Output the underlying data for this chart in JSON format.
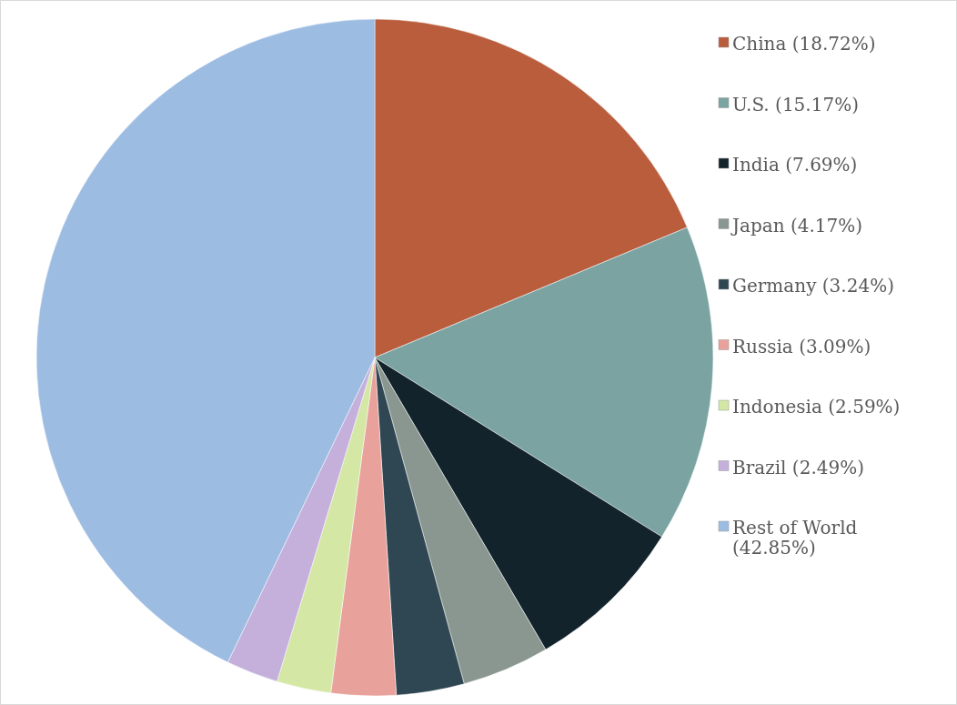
{
  "chart_data": {
    "type": "pie",
    "categories": [
      "China (18.72%)",
      "U.S. (15.17%)",
      "India (7.69%)",
      "Japan (4.17%)",
      "Germany (3.24%)",
      "Russia (3.09%)",
      "Indonesia (2.59%)",
      "Brazil (2.49%)",
      "Rest of World (42.85%)"
    ],
    "values": [
      18.72,
      15.17,
      7.69,
      4.17,
      3.24,
      3.09,
      2.59,
      2.49,
      42.85
    ],
    "colors": [
      "#b95d3d",
      "#7aa3a2",
      "#13232c",
      "#8a9791",
      "#2f4752",
      "#e9a19b",
      "#d5e7a5",
      "#c5b0dc",
      "#9dbce2"
    ],
    "legend": "right"
  }
}
